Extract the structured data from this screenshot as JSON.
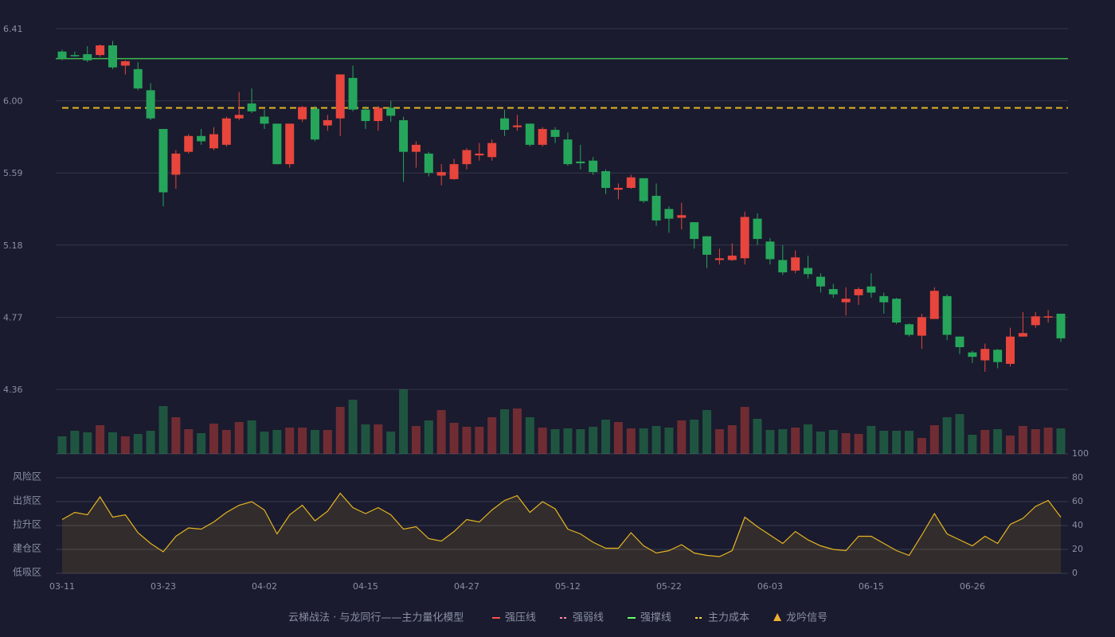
{
  "chart_data": {
    "type": "candlestick",
    "dates": [
      "03-11",
      null,
      null,
      null,
      null,
      null,
      null,
      null,
      "03-23",
      null,
      null,
      null,
      null,
      null,
      null,
      null,
      "04-02",
      null,
      null,
      null,
      null,
      null,
      null,
      null,
      "04-15",
      null,
      null,
      null,
      null,
      null,
      null,
      null,
      "04-27",
      null,
      null,
      null,
      null,
      null,
      null,
      null,
      "05-12",
      null,
      null,
      null,
      null,
      null,
      null,
      null,
      "05-22",
      null,
      null,
      null,
      null,
      null,
      null,
      null,
      "06-03",
      null,
      null,
      null,
      null,
      null,
      null,
      null,
      "06-15",
      null,
      null,
      null,
      null,
      null,
      null,
      null,
      "06-26",
      null,
      null,
      null,
      null,
      null,
      null,
      null
    ],
    "open": [
      6.28,
      6.26,
      6.265,
      6.26,
      6.315,
      6.2,
      6.18,
      6.06,
      5.84,
      5.58,
      5.71,
      5.8,
      5.73,
      5.75,
      5.9,
      5.985,
      5.91,
      5.87,
      5.64,
      5.895,
      5.955,
      5.86,
      5.9,
      6.13,
      5.95,
      5.885,
      5.96,
      5.89,
      5.71,
      5.7,
      5.575,
      5.555,
      5.64,
      5.69,
      5.68,
      5.9,
      5.85,
      5.87,
      5.75,
      5.835,
      5.78,
      5.655,
      5.66,
      5.6,
      5.495,
      5.505,
      5.56,
      5.46,
      5.385,
      5.335,
      5.31,
      5.23,
      5.095,
      5.095,
      5.105,
      5.33,
      5.2,
      5.095,
      5.035,
      5.05,
      5.0,
      4.93,
      4.855,
      4.895,
      4.945,
      4.89,
      4.875,
      4.73,
      4.665,
      4.76,
      4.89,
      4.66,
      4.57,
      4.525,
      4.585,
      4.505,
      4.66,
      4.725,
      4.77,
      4.79
    ],
    "high": [
      6.29,
      6.28,
      6.31,
      6.32,
      6.34,
      6.23,
      6.22,
      6.1,
      5.84,
      5.72,
      5.81,
      5.84,
      5.85,
      5.91,
      6.05,
      6.07,
      5.95,
      5.87,
      5.87,
      5.97,
      5.97,
      5.92,
      6.15,
      6.2,
      5.97,
      5.97,
      6.0,
      5.91,
      5.77,
      5.71,
      5.64,
      5.67,
      5.73,
      5.76,
      5.78,
      5.95,
      5.92,
      5.87,
      5.85,
      5.85,
      5.82,
      5.75,
      5.68,
      5.61,
      5.53,
      5.58,
      5.56,
      5.53,
      5.4,
      5.42,
      5.31,
      5.23,
      5.16,
      5.19,
      5.37,
      5.36,
      5.22,
      5.18,
      5.15,
      5.12,
      5.02,
      4.96,
      4.94,
      4.94,
      5.02,
      4.91,
      4.88,
      4.735,
      4.79,
      4.94,
      4.9,
      4.66,
      4.58,
      4.62,
      4.59,
      4.71,
      4.8,
      4.8,
      4.81,
      4.79
    ],
    "low": [
      6.23,
      6.25,
      6.22,
      6.25,
      6.18,
      6.15,
      6.06,
      5.89,
      5.4,
      5.5,
      5.7,
      5.75,
      5.72,
      5.74,
      5.89,
      5.93,
      5.84,
      5.64,
      5.62,
      5.88,
      5.77,
      5.83,
      5.8,
      5.94,
      5.84,
      5.83,
      5.88,
      5.54,
      5.62,
      5.57,
      5.52,
      5.55,
      5.61,
      5.66,
      5.66,
      5.8,
      5.83,
      5.74,
      5.74,
      5.76,
      5.63,
      5.61,
      5.58,
      5.47,
      5.44,
      5.5,
      5.42,
      5.29,
      5.25,
      5.27,
      5.16,
      5.05,
      5.07,
      5.09,
      5.07,
      5.18,
      5.07,
      5.01,
      5.02,
      4.99,
      4.91,
      4.88,
      4.78,
      4.84,
      4.88,
      4.79,
      4.73,
      4.66,
      4.59,
      4.76,
      4.64,
      4.56,
      4.51,
      4.46,
      4.48,
      4.49,
      4.66,
      4.71,
      4.74,
      4.63
    ],
    "close": [
      6.24,
      6.255,
      6.23,
      6.315,
      6.19,
      6.225,
      6.07,
      5.9,
      5.48,
      5.7,
      5.8,
      5.77,
      5.81,
      5.9,
      5.92,
      5.94,
      5.87,
      5.64,
      5.87,
      5.965,
      5.78,
      5.89,
      6.15,
      5.95,
      5.885,
      5.96,
      5.915,
      5.71,
      5.75,
      5.59,
      5.595,
      5.64,
      5.72,
      5.7,
      5.76,
      5.835,
      5.86,
      5.75,
      5.84,
      5.795,
      5.64,
      5.645,
      5.595,
      5.505,
      5.505,
      5.565,
      5.43,
      5.32,
      5.33,
      5.35,
      5.215,
      5.125,
      5.105,
      5.12,
      5.34,
      5.215,
      5.1,
      5.025,
      5.11,
      5.015,
      4.945,
      4.9,
      4.875,
      4.93,
      4.91,
      4.855,
      4.74,
      4.67,
      4.77,
      4.92,
      4.67,
      4.6,
      4.545,
      4.59,
      4.515,
      4.66,
      4.68,
      4.775,
      4.775,
      4.65
    ],
    "volume": [
      22,
      29,
      27,
      36,
      27,
      22,
      25,
      29,
      60,
      46,
      31,
      26,
      38,
      30,
      40,
      42,
      28,
      30,
      33,
      33,
      30,
      30,
      59,
      68,
      37,
      37,
      28,
      81,
      35,
      42,
      55,
      39,
      34,
      34,
      46,
      56,
      57,
      46,
      33,
      31,
      32,
      31,
      34,
      43,
      40,
      32,
      32,
      35,
      33,
      42,
      43,
      55,
      31,
      36,
      59,
      44,
      30,
      31,
      33,
      37,
      28,
      30,
      26,
      25,
      35,
      29,
      29,
      29,
      20,
      36,
      46,
      50,
      24,
      30,
      31,
      23,
      35,
      31,
      33,
      32
    ],
    "up_color": "#e8453c",
    "down_color": "#26a65b",
    "ylim": [
      4.36,
      6.41
    ],
    "yticks": [
      6.41,
      {
        "value": 6,
        "label": "6.00"
      },
      5.59,
      5.18,
      4.77,
      4.36
    ],
    "levels": [
      {
        "name": "强撑线",
        "value": 6.24,
        "color": "#3fb950",
        "dash": false
      },
      {
        "name": "主力成本",
        "value": 5.96,
        "color": "#e6b422",
        "dash": true
      }
    ],
    "indicator": {
      "values": [
        45,
        51,
        49,
        64,
        47,
        49,
        34,
        25,
        18,
        31,
        38,
        37,
        43,
        51,
        57,
        60,
        53,
        33,
        49,
        57,
        44,
        52,
        67,
        55,
        50,
        55,
        49,
        37,
        39,
        29,
        27,
        35,
        45,
        43,
        53,
        61,
        65,
        51,
        60,
        54,
        37,
        33,
        26,
        21,
        21,
        34,
        23,
        17,
        19,
        24,
        17,
        15,
        14,
        19,
        47,
        39,
        32,
        25,
        35,
        28,
        23,
        20,
        19,
        31,
        31,
        25,
        19,
        15,
        32,
        50,
        33,
        28,
        23,
        31,
        25,
        41,
        46,
        56,
        61,
        47
      ],
      "color": "#e6b422",
      "ylim": [
        0,
        100
      ],
      "yticks": [
        0,
        20,
        40,
        60,
        80,
        100
      ],
      "tick_colors": [
        "#e84a5f",
        "#f08a3c",
        "#4a9cf0",
        "#e040e0",
        "#f0a030",
        "#3ee05a"
      ],
      "zones": [
        "低吸区",
        "建仓区",
        "拉升区",
        "出货区",
        "风险区"
      ],
      "zone_colors": [
        "#e84a5f",
        "#f07050",
        "#4a9cf0",
        "#e040e0",
        "#f0a030"
      ]
    },
    "model_title": "云梯战法 · 与龙同行——主力量化模型",
    "legend": [
      {
        "name": "强压线",
        "color": "#ff4d4d",
        "symbol": "line"
      },
      {
        "name": "强弱线",
        "color": "#ff8aa0",
        "symbol": "dash"
      },
      {
        "name": "强撑线",
        "color": "#66ff66",
        "symbol": "line"
      },
      {
        "name": "主力成本",
        "color": "#ffd84a",
        "symbol": "dash"
      },
      {
        "name": "龙吟信号",
        "color": "#f0b030",
        "symbol": "triangle"
      }
    ]
  }
}
